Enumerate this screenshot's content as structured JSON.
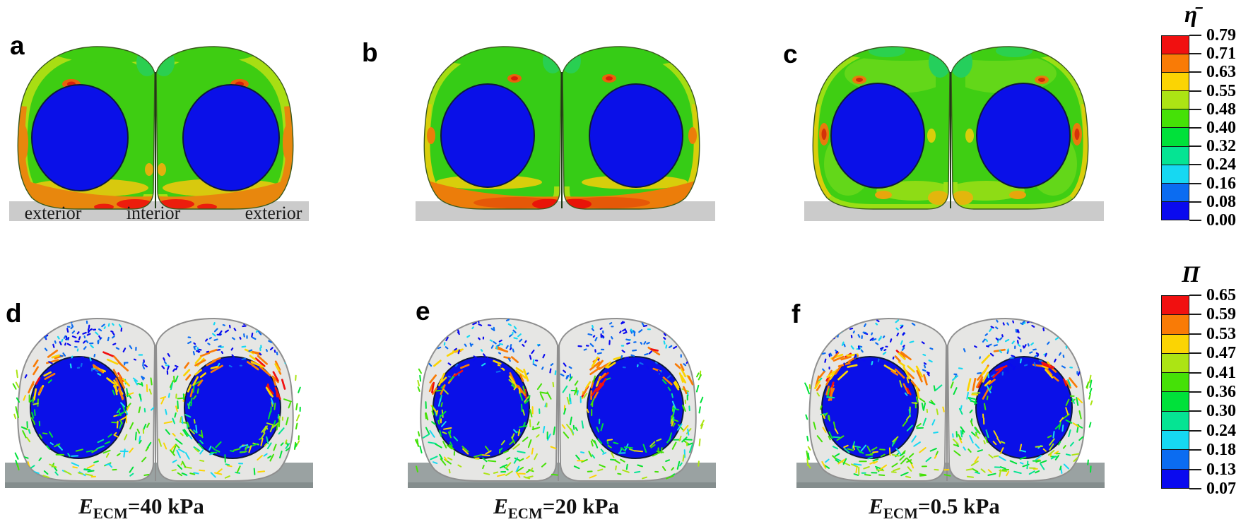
{
  "figure": {
    "background": "#ffffff",
    "panels": [
      {
        "label": "a",
        "type": "contour"
      },
      {
        "label": "b",
        "type": "contour"
      },
      {
        "label": "c",
        "type": "contour"
      },
      {
        "label": "d",
        "type": "vector"
      },
      {
        "label": "e",
        "type": "vector"
      },
      {
        "label": "f",
        "type": "vector"
      }
    ],
    "substrate_annotations": {
      "left": "exterior",
      "center": "interior",
      "right": "exterior"
    },
    "captions": [
      {
        "var": "E",
        "sub": "ECM",
        "rest": "=40 kPa"
      },
      {
        "var": "E",
        "sub": "ECM",
        "rest": "=20 kPa"
      },
      {
        "var": "E",
        "sub": "ECM",
        "rest": "=0.5 kPa"
      }
    ],
    "colors": {
      "nucleus": "#0a10e8",
      "substrate_top_row": "#cbcbcb",
      "substrate_bottom_row": "#9aa2a2",
      "cytoplasm_vector": "#e6e6e4",
      "contour_base_green": "#3ecd12"
    }
  },
  "colorbars": [
    {
      "title": "η̄",
      "ticks": [
        "0.79",
        "0.71",
        "0.63",
        "0.55",
        "0.48",
        "0.40",
        "0.32",
        "0.24",
        "0.16",
        "0.08",
        "0.00"
      ],
      "segment_colors": [
        "#f11010",
        "#f97b06",
        "#fbd403",
        "#ace414",
        "#45e107",
        "#00e13a",
        "#05e493",
        "#16d8f2",
        "#0b6cf1",
        "#0a0aef"
      ]
    },
    {
      "title": "Π",
      "ticks": [
        "0.65",
        "0.59",
        "0.53",
        "0.47",
        "0.41",
        "0.36",
        "0.30",
        "0.24",
        "0.18",
        "0.13",
        "0.07"
      ],
      "segment_colors": [
        "#f11010",
        "#f97b06",
        "#fbd403",
        "#ace414",
        "#45e107",
        "#00e13a",
        "#05e493",
        "#16d8f2",
        "#0b6cf1",
        "#0a0aef"
      ]
    }
  ]
}
